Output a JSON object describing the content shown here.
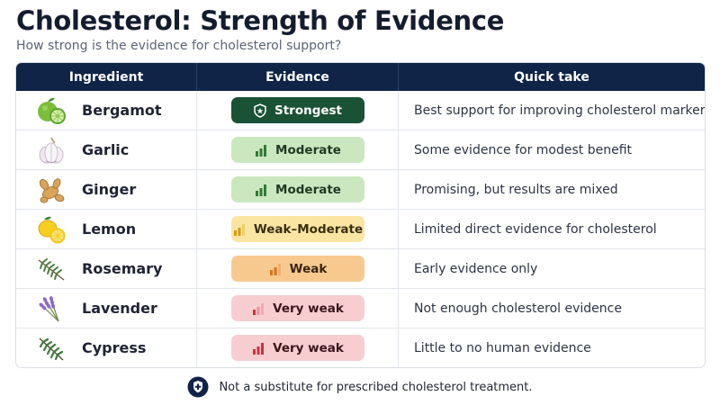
{
  "header": {
    "title": "Cholesterol: Strength of Evidence",
    "subtitle": "How strong is the evidence for cholesterol support?"
  },
  "table": {
    "columns": [
      "Ingredient",
      "Evidence",
      "Quick take"
    ],
    "rows": [
      {
        "ingredient": "Bergamot",
        "icon": "bergamot-icon",
        "evidence": "Strongest",
        "level": "strongest",
        "quick_take": "Best support for improving cholesterol markers"
      },
      {
        "ingredient": "Garlic",
        "icon": "garlic-icon",
        "evidence": "Moderate",
        "level": "moderate",
        "quick_take": "Some evidence for modest benefit"
      },
      {
        "ingredient": "Ginger",
        "icon": "ginger-icon",
        "evidence": "Moderate",
        "level": "moderate",
        "quick_take": "Promising, but results are mixed"
      },
      {
        "ingredient": "Lemon",
        "icon": "lemon-icon",
        "evidence": "Weak–Moderate",
        "level": "weak-moderate",
        "quick_take": "Limited direct evidence for cholesterol"
      },
      {
        "ingredient": "Rosemary",
        "icon": "rosemary-icon",
        "evidence": "Weak",
        "level": "weak",
        "quick_take": "Early evidence only"
      },
      {
        "ingredient": "Lavender",
        "icon": "lavender-icon",
        "evidence": "Very weak",
        "level": "very-weak",
        "quick_take": "Not enough cholesterol evidence"
      },
      {
        "ingredient": "Cypress",
        "icon": "cypress-icon",
        "evidence": "Very weak",
        "level": "very-weak",
        "quick_take": "Little to no human evidence"
      }
    ]
  },
  "footer": {
    "text": "Not a substitute for prescribed cholesterol treatment.",
    "icon": "shield-plus-icon"
  },
  "colors": {
    "header_bg": "#0f2447",
    "strongest": "#1a5236",
    "moderate": "#cbe7c0",
    "weak_moderate": "#fbe5a3",
    "weak": "#f8c98e",
    "very_weak": "#f8cdd0"
  }
}
